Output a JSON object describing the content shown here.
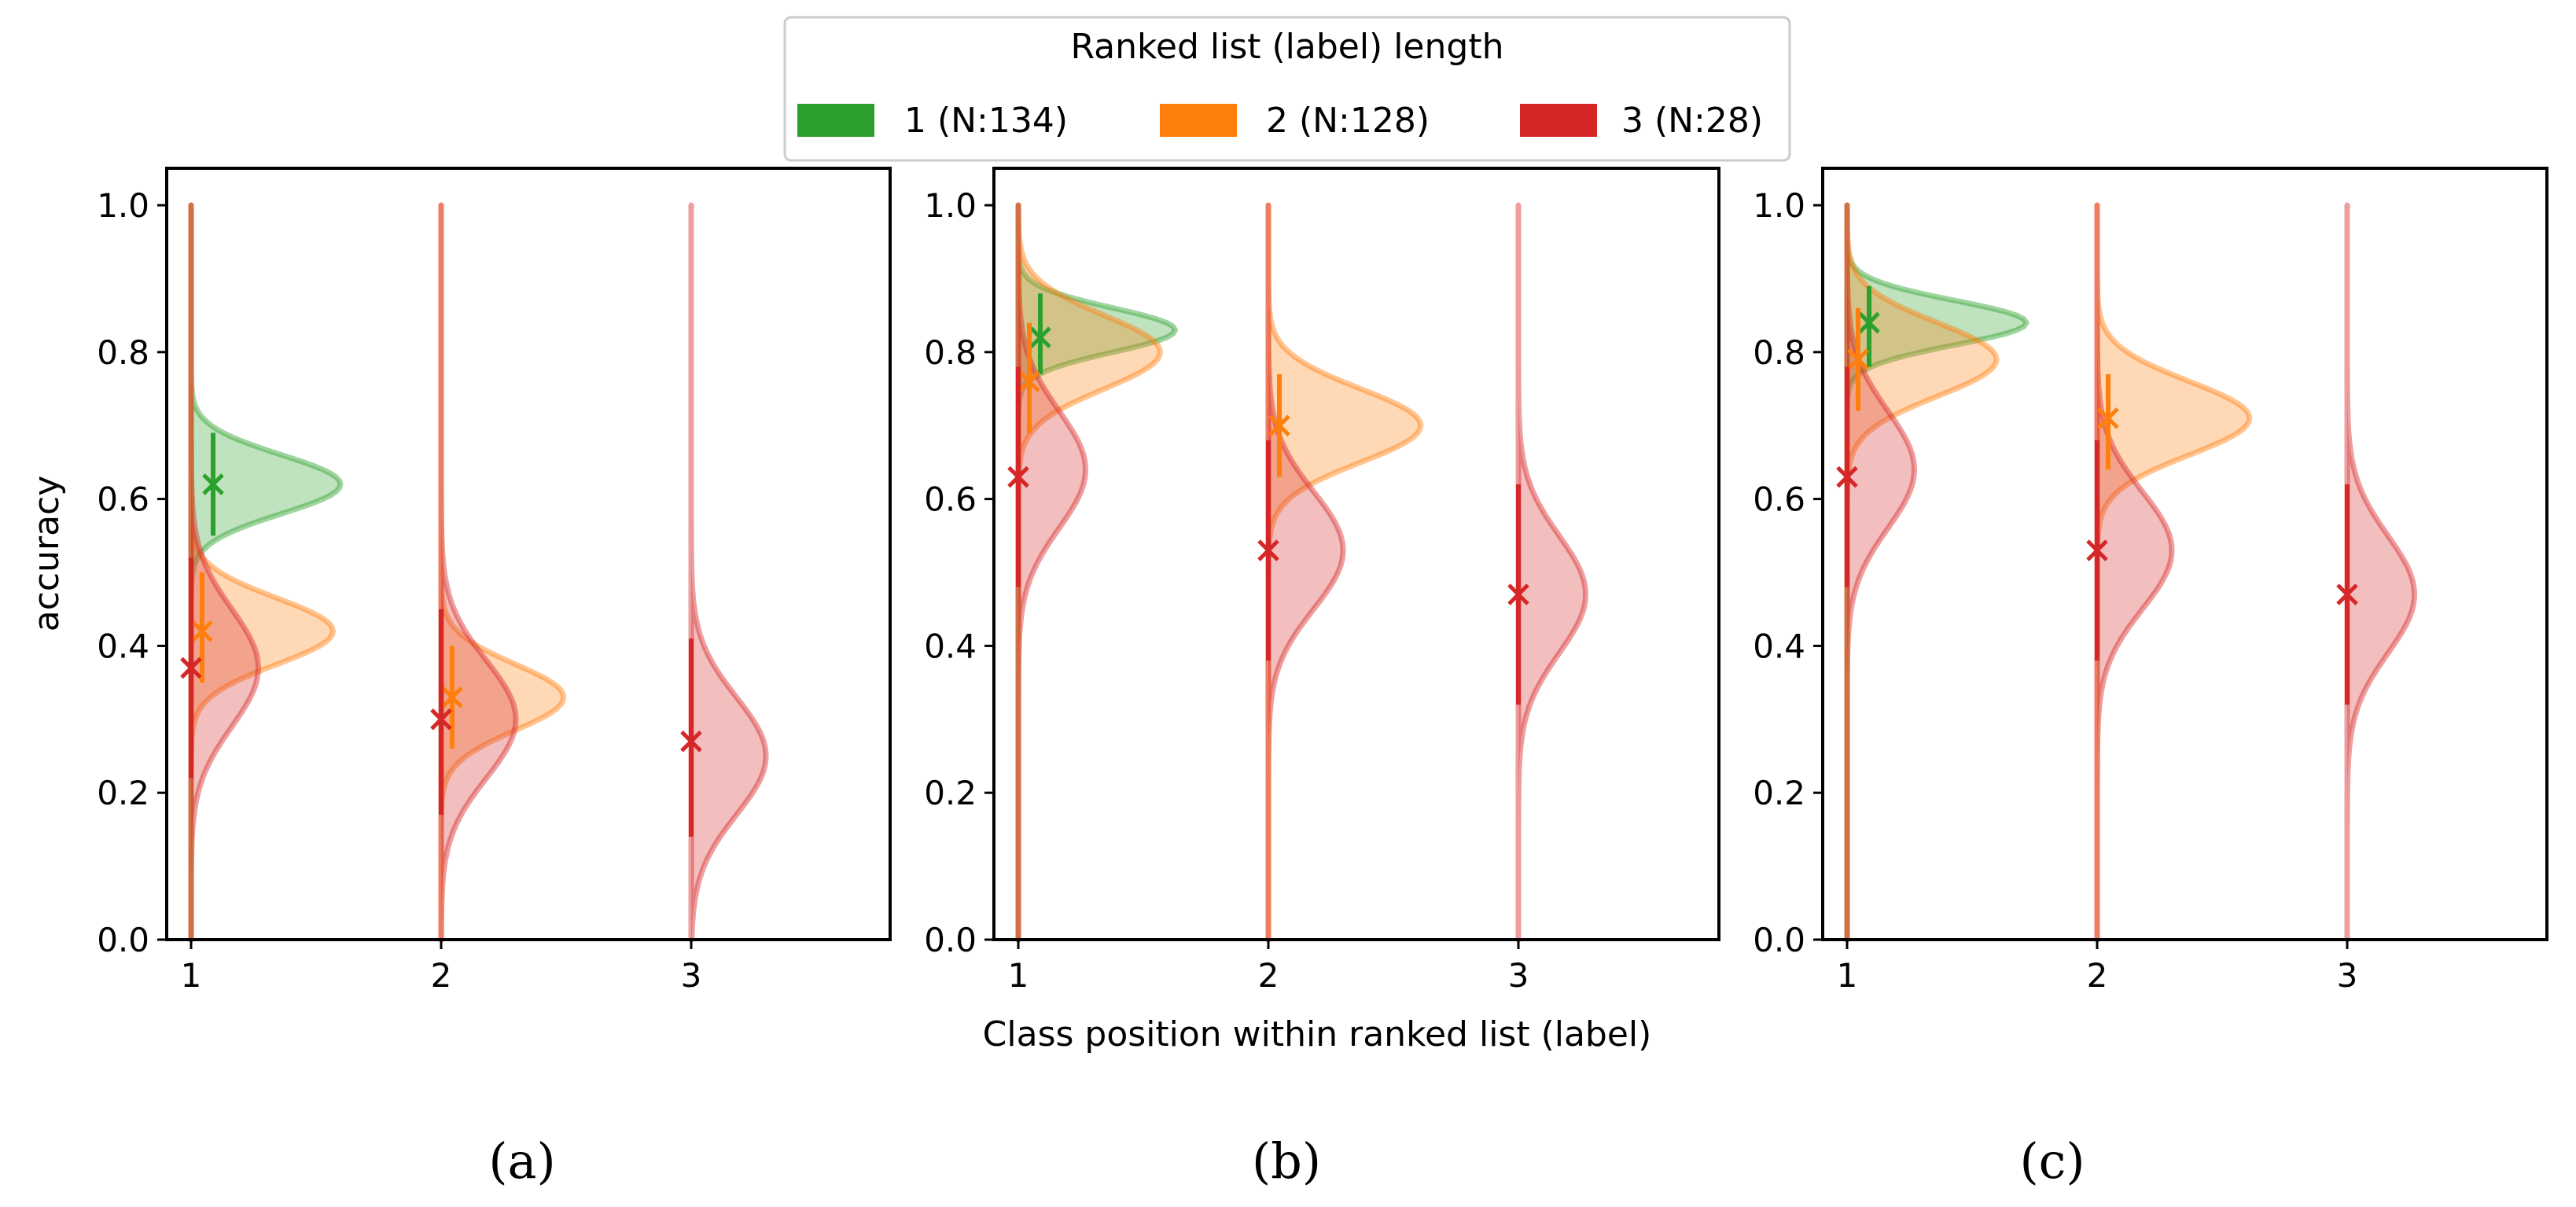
{
  "legend": {
    "title": "Ranked list (label) length",
    "entries": [
      {
        "label": "1 (N:134)",
        "color": "#2ca02c"
      },
      {
        "label": "2 (N:128)",
        "color": "#ff7f0e"
      },
      {
        "label": "3 (N:28)",
        "color": "#d62728"
      }
    ]
  },
  "shared_xlabel": "Class position within ranked list (label)",
  "chart_data": [
    {
      "type": "violin",
      "caption": "(a)",
      "ylabel": "accuracy",
      "xlabel": "",
      "x_ticks": [
        "1",
        "2",
        "3"
      ],
      "y_ticks": [
        "0.0",
        "0.2",
        "0.4",
        "0.6",
        "0.8",
        "1.0"
      ],
      "ylim": [
        0.0,
        1.0
      ],
      "series": [
        {
          "name": "1 (N:134)",
          "color": "#2ca02c",
          "points": [
            {
              "position": 1,
              "mean": 0.62,
              "err_low": 0.55,
              "err_high": 0.69,
              "dist_peak": 0.62,
              "dist_sd": 0.04,
              "dist_width": 1.0
            }
          ]
        },
        {
          "name": "2 (N:128)",
          "color": "#ff7f0e",
          "points": [
            {
              "position": 1,
              "mean": 0.42,
              "err_low": 0.35,
              "err_high": 0.5,
              "dist_peak": 0.42,
              "dist_sd": 0.045,
              "dist_width": 0.95
            },
            {
              "position": 2,
              "mean": 0.33,
              "err_low": 0.26,
              "err_high": 0.4,
              "dist_peak": 0.33,
              "dist_sd": 0.045,
              "dist_width": 0.82
            }
          ]
        },
        {
          "name": "3 (N:28)",
          "color": "#d62728",
          "points": [
            {
              "position": 1,
              "mean": 0.37,
              "err_low": 0.22,
              "err_high": 0.52,
              "dist_peak": 0.37,
              "dist_sd": 0.08,
              "dist_width": 0.45
            },
            {
              "position": 2,
              "mean": 0.3,
              "err_low": 0.17,
              "err_high": 0.45,
              "dist_peak": 0.3,
              "dist_sd": 0.08,
              "dist_width": 0.5
            },
            {
              "position": 3,
              "mean": 0.27,
              "err_low": 0.14,
              "err_high": 0.41,
              "dist_peak": 0.25,
              "dist_sd": 0.08,
              "dist_width": 0.5
            }
          ]
        }
      ]
    },
    {
      "type": "violin",
      "caption": "(b)",
      "ylabel": "",
      "xlabel": "Class position within ranked list (label)",
      "x_ticks": [
        "1",
        "2",
        "3"
      ],
      "y_ticks": [
        "0.0",
        "0.2",
        "0.4",
        "0.6",
        "0.8",
        "1.0"
      ],
      "ylim": [
        0.0,
        1.0
      ],
      "series": [
        {
          "name": "1 (N:134)",
          "color": "#2ca02c",
          "points": [
            {
              "position": 1,
              "mean": 0.82,
              "err_low": 0.77,
              "err_high": 0.88,
              "dist_peak": 0.83,
              "dist_sd": 0.03,
              "dist_width": 1.05
            }
          ]
        },
        {
          "name": "2 (N:128)",
          "color": "#ff7f0e",
          "points": [
            {
              "position": 1,
              "mean": 0.76,
              "err_low": 0.69,
              "err_high": 0.84,
              "dist_peak": 0.8,
              "dist_sd": 0.05,
              "dist_width": 0.95
            },
            {
              "position": 2,
              "mean": 0.7,
              "err_low": 0.63,
              "err_high": 0.77,
              "dist_peak": 0.7,
              "dist_sd": 0.05,
              "dist_width": 1.02
            }
          ]
        },
        {
          "name": "3 (N:28)",
          "color": "#d62728",
          "points": [
            {
              "position": 1,
              "mean": 0.63,
              "err_low": 0.48,
              "err_high": 0.78,
              "dist_peak": 0.64,
              "dist_sd": 0.08,
              "dist_width": 0.45
            },
            {
              "position": 2,
              "mean": 0.53,
              "err_low": 0.38,
              "err_high": 0.68,
              "dist_peak": 0.53,
              "dist_sd": 0.08,
              "dist_width": 0.5
            },
            {
              "position": 3,
              "mean": 0.47,
              "err_low": 0.32,
              "err_high": 0.62,
              "dist_peak": 0.47,
              "dist_sd": 0.08,
              "dist_width": 0.45
            }
          ]
        }
      ]
    },
    {
      "type": "violin",
      "caption": "(c)",
      "ylabel": "",
      "xlabel": "",
      "x_ticks": [
        "1",
        "2",
        "3"
      ],
      "y_ticks": [
        "0.0",
        "0.2",
        "0.4",
        "0.6",
        "0.8",
        "1.0"
      ],
      "ylim": [
        0.0,
        1.0
      ],
      "series": [
        {
          "name": "1 (N:134)",
          "color": "#2ca02c",
          "points": [
            {
              "position": 1,
              "mean": 0.84,
              "err_low": 0.78,
              "err_high": 0.89,
              "dist_peak": 0.84,
              "dist_sd": 0.03,
              "dist_width": 1.2
            }
          ]
        },
        {
          "name": "2 (N:128)",
          "color": "#ff7f0e",
          "points": [
            {
              "position": 1,
              "mean": 0.79,
              "err_low": 0.72,
              "err_high": 0.86,
              "dist_peak": 0.79,
              "dist_sd": 0.05,
              "dist_width": 1.0
            },
            {
              "position": 2,
              "mean": 0.71,
              "err_low": 0.64,
              "err_high": 0.77,
              "dist_peak": 0.71,
              "dist_sd": 0.05,
              "dist_width": 1.02
            }
          ]
        },
        {
          "name": "3 (N:28)",
          "color": "#d62728",
          "points": [
            {
              "position": 1,
              "mean": 0.63,
              "err_low": 0.48,
              "err_high": 0.78,
              "dist_peak": 0.64,
              "dist_sd": 0.08,
              "dist_width": 0.45
            },
            {
              "position": 2,
              "mean": 0.53,
              "err_low": 0.38,
              "err_high": 0.68,
              "dist_peak": 0.53,
              "dist_sd": 0.08,
              "dist_width": 0.5
            },
            {
              "position": 3,
              "mean": 0.47,
              "err_low": 0.32,
              "err_high": 0.62,
              "dist_peak": 0.47,
              "dist_sd": 0.08,
              "dist_width": 0.45
            }
          ]
        }
      ]
    }
  ]
}
